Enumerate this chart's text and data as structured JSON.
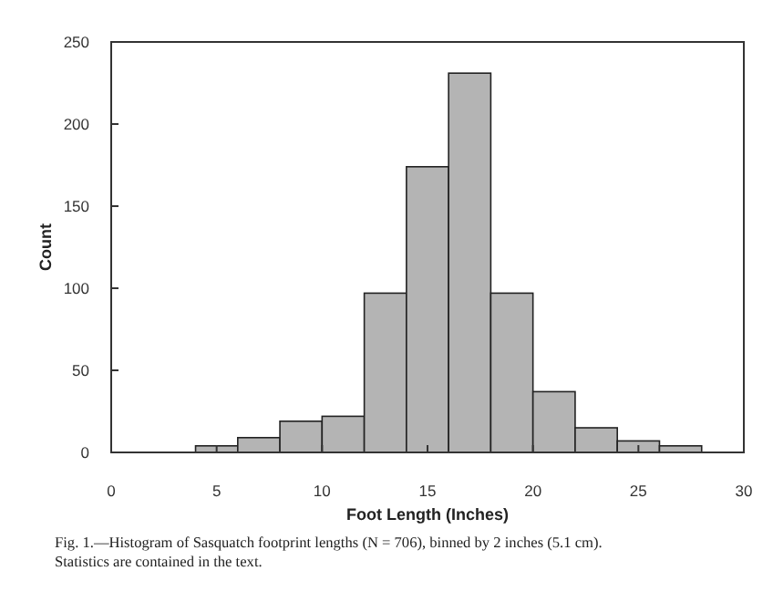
{
  "chart_data": {
    "type": "histogram",
    "xlabel": "Foot Length (Inches)",
    "ylabel": "Count",
    "bins": [
      4,
      6,
      8,
      10,
      12,
      14,
      16,
      18,
      20,
      22,
      24,
      26,
      28
    ],
    "values": [
      4,
      9,
      19,
      22,
      97,
      174,
      231,
      97,
      37,
      15,
      7,
      4
    ],
    "color": "#b4b4b4",
    "xlim": [
      0,
      30
    ],
    "xticks": [
      0,
      5,
      10,
      15,
      20,
      25,
      30
    ],
    "ylim": [
      0,
      250
    ],
    "yticks": [
      0,
      50,
      100,
      150,
      200,
      250
    ],
    "grid": false,
    "annotations": [
      "Fig. 1.—Histogram of Sasquatch footprint lengths (N = 706), binned by 2 inches (5.1 cm). Statistics are contained in the text."
    ]
  }
}
